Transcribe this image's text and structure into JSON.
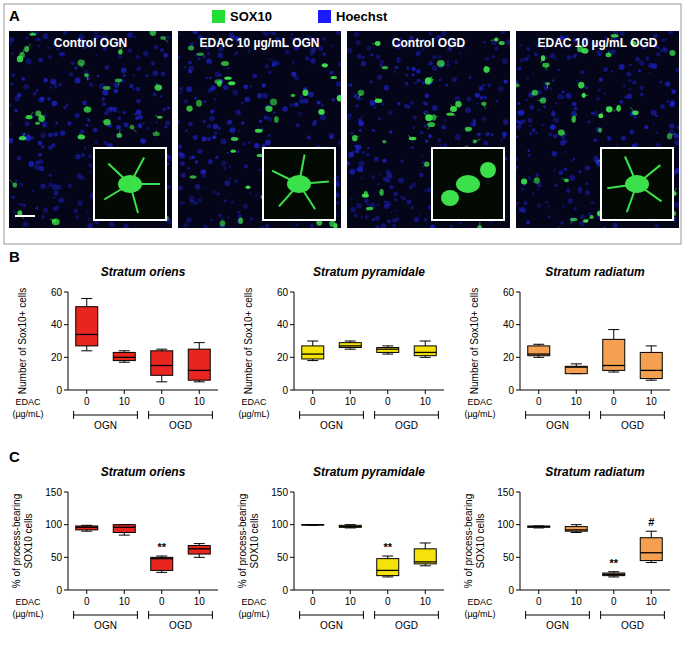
{
  "panel_labels": [
    "A",
    "B",
    "C"
  ],
  "panel_a": {
    "legend": [
      {
        "label": "SOX10",
        "color": "#22dd33"
      },
      {
        "label": "Hoechst",
        "color": "#1a1aff"
      }
    ],
    "images": [
      {
        "title": "Control OGN"
      },
      {
        "title": "EDAC 10 µg/mL OGN"
      },
      {
        "title": "Control OGD"
      },
      {
        "title": "EDAC 10 µg/mL OGD"
      }
    ]
  },
  "chart_data": [
    {
      "type": "box",
      "title": "Stratum oriens",
      "y_label": [
        "Number of Sox10+ cells"
      ],
      "x_label": [
        "EDAC",
        "(µg/mL)"
      ],
      "categories": [
        "0",
        "10",
        "0",
        "10"
      ],
      "groups": [
        {
          "label": "OGN",
          "categories": [
            0,
            1
          ]
        },
        {
          "label": "OGD",
          "categories": [
            2,
            3
          ]
        }
      ],
      "min": [
        24,
        17,
        5,
        5
      ],
      "q1": [
        27,
        18,
        9,
        6
      ],
      "median": [
        34,
        20,
        15,
        12
      ],
      "q3": [
        51,
        23,
        24,
        25
      ],
      "max": [
        56,
        24,
        25,
        29
      ],
      "color": "#e8261f",
      "ylim": [
        0,
        60
      ],
      "yticks": [
        0,
        20,
        40,
        60
      ],
      "annotations": []
    },
    {
      "type": "box",
      "title": "Stratum pyramidale",
      "y_label": [
        "Number of Sox10+ cells"
      ],
      "x_label": [
        "EDAC",
        "(µg/mL)"
      ],
      "categories": [
        "0",
        "10",
        "0",
        "10"
      ],
      "groups": [
        {
          "label": "OGN",
          "categories": [
            0,
            1
          ]
        },
        {
          "label": "OGD",
          "categories": [
            2,
            3
          ]
        }
      ],
      "min": [
        18,
        25,
        22,
        20
      ],
      "q1": [
        19,
        26,
        23,
        21
      ],
      "median": [
        22,
        27,
        25,
        23
      ],
      "q3": [
        27,
        29,
        26,
        27
      ],
      "max": [
        30,
        30,
        27,
        30
      ],
      "color": "#f5e20b",
      "ylim": [
        0,
        60
      ],
      "yticks": [
        0,
        20,
        40,
        60
      ],
      "annotations": []
    },
    {
      "type": "box",
      "title": "Stratum radiatum",
      "y_label": [
        "Number of Sox10+ cells"
      ],
      "x_label": [
        "EDAC",
        "(µg/mL)"
      ],
      "categories": [
        "0",
        "10",
        "0",
        "10"
      ],
      "groups": [
        {
          "label": "OGN",
          "categories": [
            0,
            1
          ]
        },
        {
          "label": "OGD",
          "categories": [
            2,
            3
          ]
        }
      ],
      "min": [
        20,
        10,
        11,
        6
      ],
      "q1": [
        21,
        10,
        12,
        7
      ],
      "median": [
        22,
        14,
        15,
        12
      ],
      "q3": [
        27,
        14.5,
        31,
        23
      ],
      "max": [
        28,
        16,
        37,
        27
      ],
      "color": "#f5a050",
      "ylim": [
        0,
        60
      ],
      "yticks": [
        0,
        20,
        40,
        60
      ],
      "annotations": []
    },
    {
      "type": "box",
      "title": "Stratum oriens",
      "y_label": [
        "% of process-bearing",
        "SOX10 cells"
      ],
      "x_label": [
        "EDAC",
        "(µg/mL)"
      ],
      "categories": [
        "0",
        "10",
        "0",
        "10"
      ],
      "groups": [
        {
          "label": "OGN",
          "categories": [
            0,
            1
          ]
        },
        {
          "label": "OGD",
          "categories": [
            2,
            3
          ]
        }
      ],
      "min": [
        90,
        84,
        27,
        50
      ],
      "q1": [
        92,
        88,
        30,
        55
      ],
      "median": [
        96,
        96,
        48,
        63
      ],
      "q3": [
        98,
        100,
        50,
        68
      ],
      "max": [
        99,
        100,
        52,
        71
      ],
      "color": "#e8261f",
      "ylim": [
        0,
        150
      ],
      "yticks": [
        0,
        50,
        100,
        150
      ],
      "annotations": [
        {
          "text": "**",
          "category": 2
        }
      ]
    },
    {
      "type": "box",
      "title": "Stratum pyramidale",
      "y_label": [
        "% of process-bearing",
        "SOX10 cells"
      ],
      "x_label": [
        "EDAC",
        "(µg/mL)"
      ],
      "categories": [
        "0",
        "10",
        "0",
        "10"
      ],
      "groups": [
        {
          "label": "OGN",
          "categories": [
            0,
            1
          ]
        },
        {
          "label": "OGD",
          "categories": [
            2,
            3
          ]
        }
      ],
      "min": [
        99,
        95,
        20,
        37
      ],
      "q1": [
        100,
        96,
        22,
        40
      ],
      "median": [
        100,
        97,
        30,
        43
      ],
      "q3": [
        100,
        99,
        48,
        63
      ],
      "max": [
        100,
        100,
        52,
        72
      ],
      "color": "#f5e20b",
      "ylim": [
        0,
        150
      ],
      "yticks": [
        0,
        50,
        100,
        150
      ],
      "annotations": [
        {
          "text": "**",
          "category": 2
        }
      ]
    },
    {
      "type": "box",
      "title": "Stratum radiatum",
      "y_label": [
        "% of process-bearing",
        "SOX10 cells"
      ],
      "x_label": [
        "EDAC",
        "(µg/mL)"
      ],
      "categories": [
        "0",
        "10",
        "0",
        "10"
      ],
      "groups": [
        {
          "label": "OGN",
          "categories": [
            0,
            1
          ]
        },
        {
          "label": "OGD",
          "categories": [
            2,
            3
          ]
        }
      ],
      "min": [
        95,
        88,
        20,
        42
      ],
      "q1": [
        96,
        90,
        22,
        45
      ],
      "median": [
        97,
        92,
        24,
        57
      ],
      "q3": [
        98,
        97,
        26,
        80
      ],
      "max": [
        98,
        100,
        28,
        90
      ],
      "color": "#f5a050",
      "ylim": [
        0,
        150
      ],
      "yticks": [
        0,
        50,
        100,
        150
      ],
      "annotations": [
        {
          "text": "**",
          "category": 2
        },
        {
          "text": "#",
          "category": 3
        }
      ]
    }
  ]
}
